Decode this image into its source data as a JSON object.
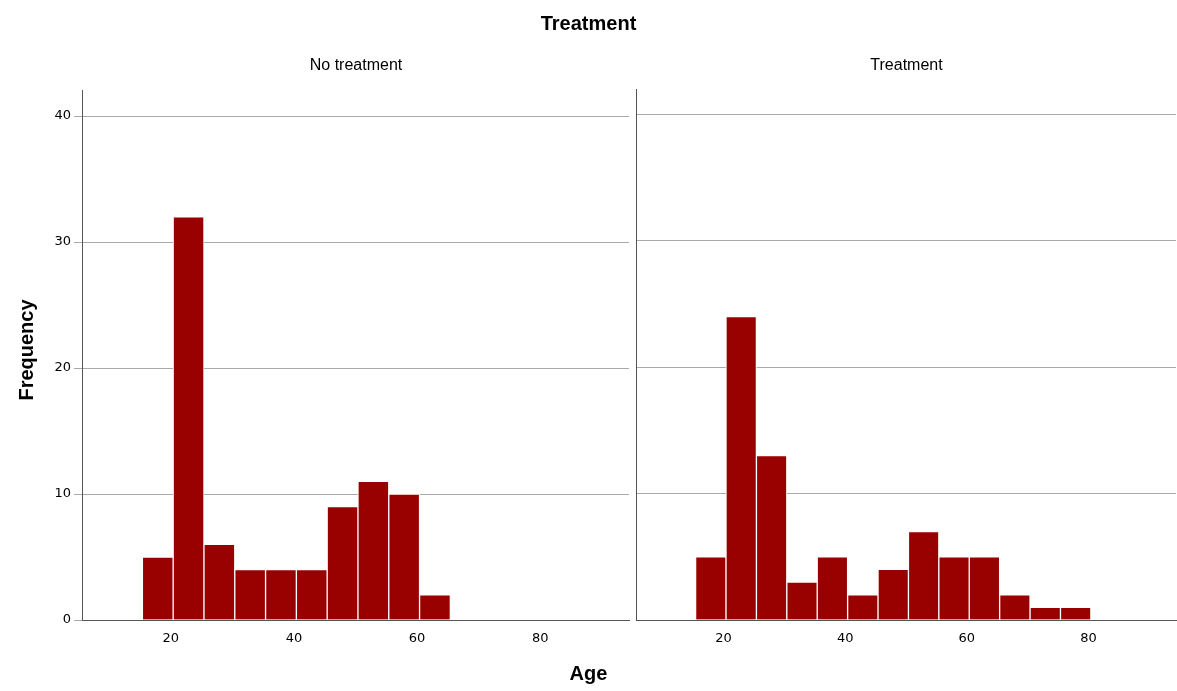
{
  "chart_data": [
    {
      "type": "histogram",
      "title": "Treatment",
      "subtitle": "No treatment",
      "xlabel": "Age",
      "ylabel": "Frequency",
      "color": "#990000",
      "bins": [
        15.4,
        20.4,
        25.4,
        30.4,
        35.4,
        40.4,
        45.4,
        50.4,
        55.4,
        60.4,
        65.4
      ],
      "values": [
        5,
        32,
        6,
        4,
        4,
        4,
        9,
        11,
        10,
        2
      ],
      "xlim": [
        5.6,
        94.4
      ],
      "xticks": [
        20,
        40,
        60,
        80
      ],
      "ylim": [
        0,
        42
      ],
      "yticks": [
        0,
        10,
        20,
        30,
        40
      ],
      "grid": "y"
    },
    {
      "type": "histogram",
      "subtitle": "Treatment",
      "color": "#990000",
      "bins": [
        15.4,
        20.4,
        25.4,
        30.4,
        35.4,
        40.4,
        45.4,
        50.4,
        55.4,
        60.4,
        65.4,
        70.4,
        75.4,
        80.4
      ],
      "values": [
        5,
        24,
        13,
        3,
        5,
        2,
        4,
        7,
        5,
        5,
        2,
        1,
        1
      ],
      "xlim": [
        5.6,
        94.4
      ],
      "xticks": [
        20,
        40,
        60,
        80
      ],
      "ylim": [
        0,
        42
      ],
      "yticks": [
        0,
        10,
        20,
        30,
        40
      ],
      "grid": "y",
      "tick_labels": "x"
    }
  ]
}
